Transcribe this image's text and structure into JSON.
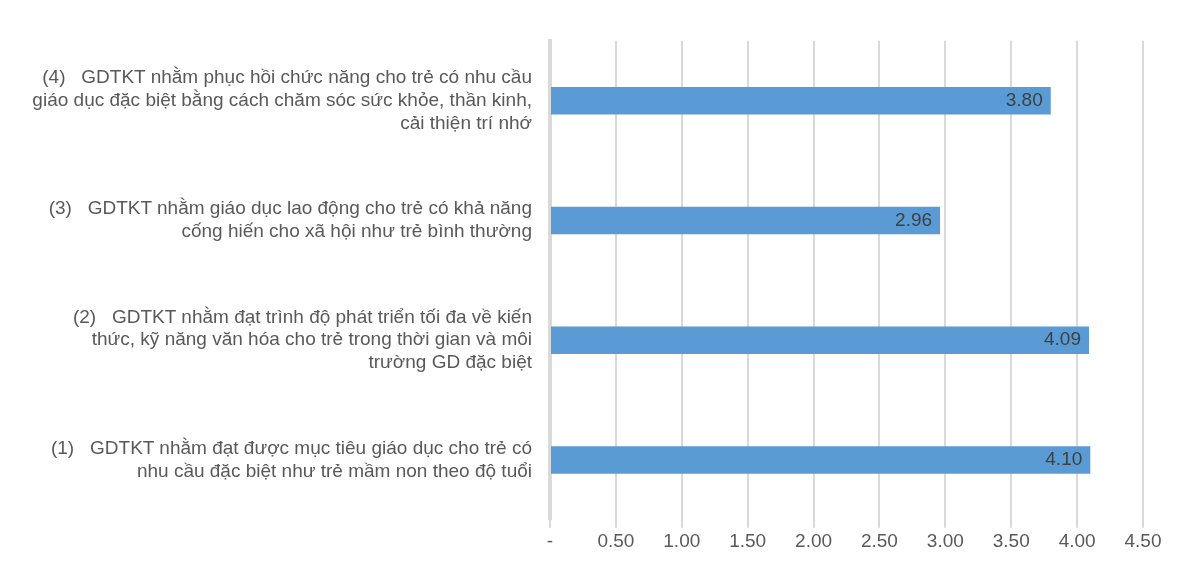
{
  "chart_data": {
    "type": "bar",
    "orientation": "horizontal",
    "categories": [
      "(4)   GDTKT nhằm phục hồi chức năng cho trẻ có nhu cầu giáo dục đặc biệt bằng cách chăm sóc sức khỏe, thần kinh, cải thiện trí nhớ",
      "(3)   GDTKT nhằm giáo dục lao động cho trẻ có khả năng cống hiến cho xã hội như trẻ bình thường",
      "(2)   GDTKT nhằm đạt trình độ phát triển tối đa về kiến thức, kỹ năng văn hóa cho trẻ trong thời gian và môi trường GD đặc biệt",
      "(1)   GDTKT nhằm đạt được mục tiêu giáo dục cho trẻ có nhu cầu đặc biệt như trẻ mầm non theo độ tuổi"
    ],
    "values": [
      3.8,
      2.96,
      4.09,
      4.1
    ],
    "value_labels": [
      "3.80",
      "2.96",
      "4.09",
      "4.10"
    ],
    "color": "#5b9bd5",
    "xlim": [
      0,
      4.5
    ],
    "xticks": [
      {
        "value": 0,
        "label": "-"
      },
      {
        "value": 0.5,
        "label": "0.50"
      },
      {
        "value": 1,
        "label": "1.00"
      },
      {
        "value": 1.5,
        "label": "1.50"
      },
      {
        "value": 2,
        "label": "2.00"
      },
      {
        "value": 2.5,
        "label": "2.50"
      },
      {
        "value": 3,
        "label": "3.00"
      },
      {
        "value": 3.5,
        "label": "3.50"
      },
      {
        "value": 4,
        "label": "4.00"
      },
      {
        "value": 4.5,
        "label": "4.50"
      }
    ],
    "grid": "x",
    "legend": false
  }
}
